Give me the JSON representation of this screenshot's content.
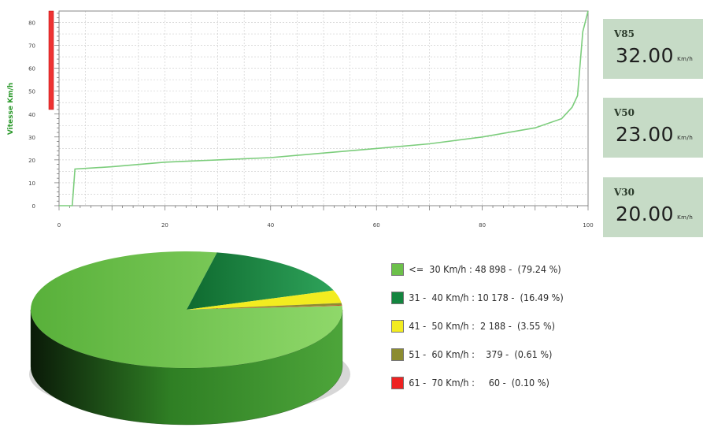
{
  "chart_data": [
    {
      "type": "line",
      "ylabel": "Vitesse Km/h",
      "xlim": [
        0,
        100
      ],
      "ylim": [
        0,
        85
      ],
      "x_ticks": [
        "0",
        "20",
        "40",
        "60",
        "80",
        "100"
      ],
      "y_ticks": [
        "0",
        "10",
        "20",
        "30",
        "40",
        "50",
        "60",
        "70",
        "80"
      ],
      "grid": true,
      "series": [
        {
          "color": "#7ccd7c",
          "x": [
            0,
            2.5,
            3,
            10,
            20,
            30,
            40,
            50,
            60,
            70,
            80,
            90,
            95,
            97,
            98,
            99,
            100
          ],
          "y": [
            0,
            0,
            16,
            17,
            19,
            20,
            21,
            23,
            25,
            27,
            30,
            34,
            38,
            43,
            48,
            76,
            85
          ]
        }
      ],
      "marker_bar": {
        "color": "#ee3333",
        "y_range": [
          42,
          85
        ]
      }
    },
    {
      "type": "pie",
      "style": "3d",
      "categories": [
        "<= 30 Km/h",
        "31 - 40 Km/h",
        "41 - 50 Km/h",
        "51 - 60 Km/h",
        "61 - 70 Km/h"
      ],
      "values": [
        48898,
        10178,
        2188,
        379,
        60
      ],
      "percents": [
        79.24,
        16.49,
        3.55,
        0.61,
        0.1
      ],
      "colors": [
        "#6cc04a",
        "#13853f",
        "#f2ec20",
        "#8c8c30",
        "#ee2222"
      ],
      "legend_text": [
        "<=  30 Km/h : 48 898 -  (79.24 %)",
        "31 -  40 Km/h : 10 178 -  (16.49 %)",
        "41 -  50 Km/h :  2 188 -  (3.55 %)",
        "51 -  60 Km/h :    379 -  (0.61 %)",
        "61 -  70 Km/h :     60 -  (0.10 %)"
      ],
      "legend_position": "right"
    }
  ],
  "stats": [
    {
      "label": "V85",
      "value": "32.00",
      "unit": "Km/h"
    },
    {
      "label": "V50",
      "value": "23.00",
      "unit": "Km/h"
    },
    {
      "label": "V30",
      "value": "20.00",
      "unit": "Km/h"
    }
  ]
}
